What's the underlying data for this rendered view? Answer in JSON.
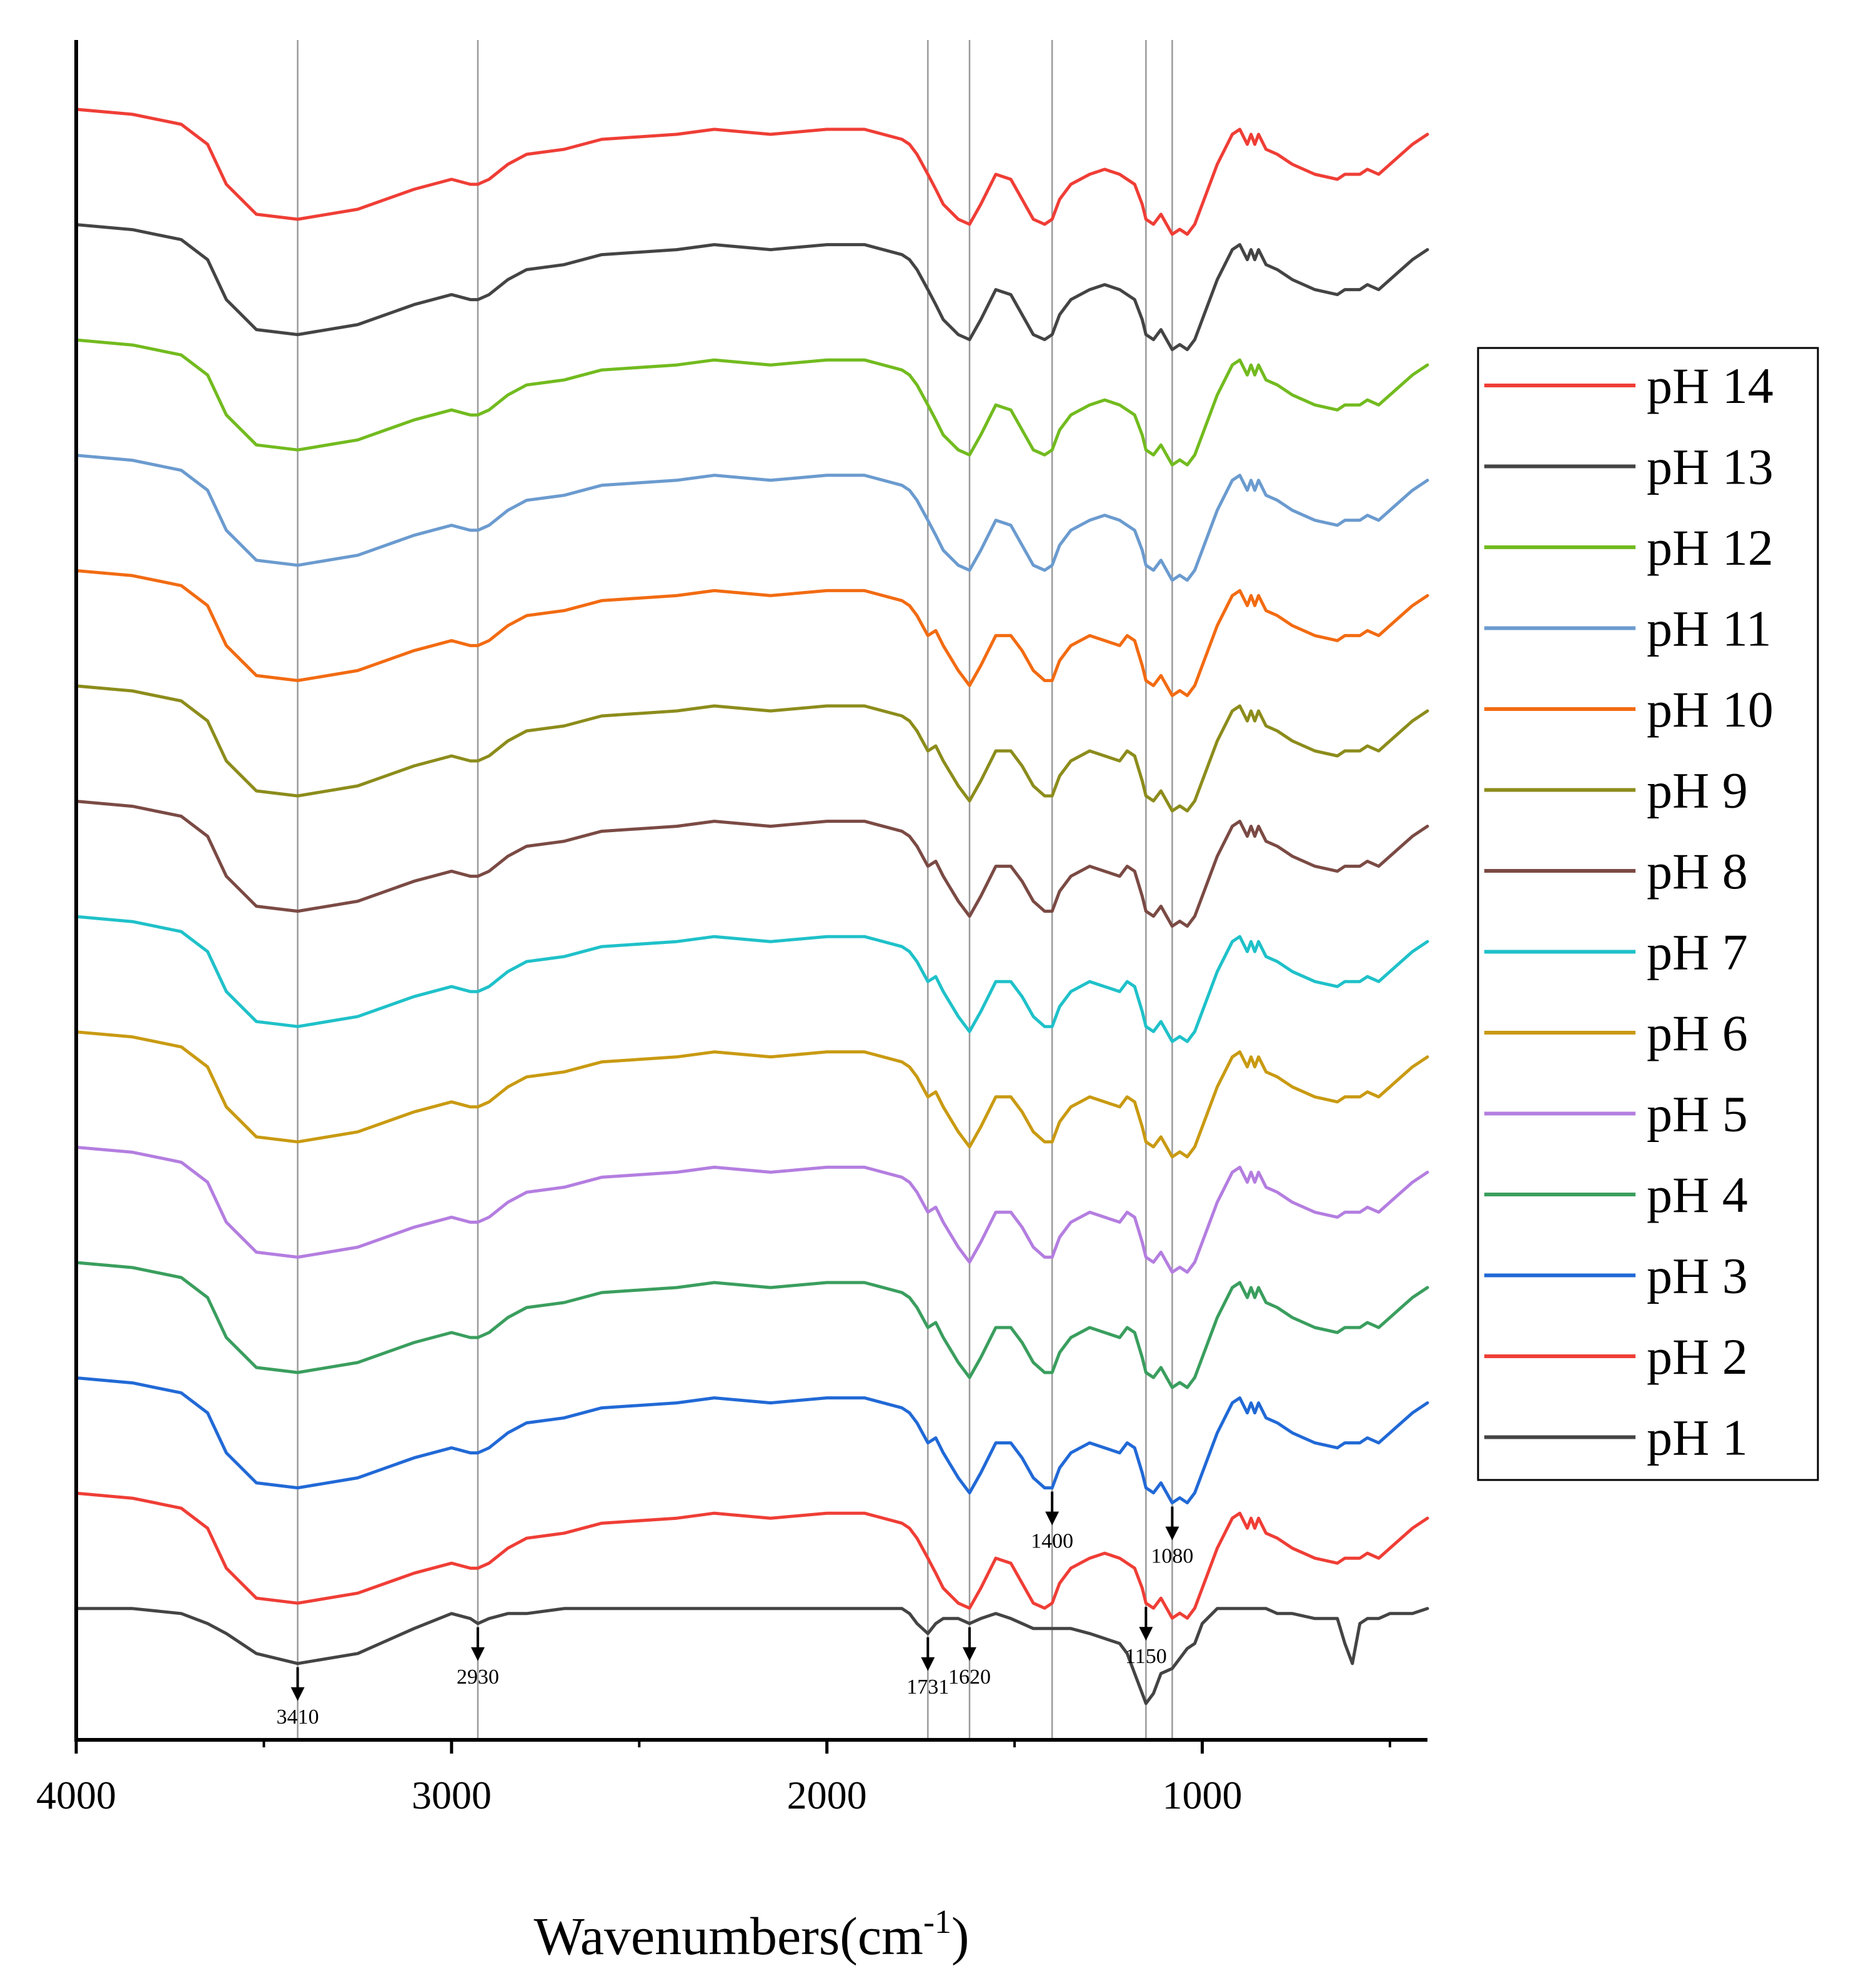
{
  "chart_data": {
    "type": "line",
    "title": "",
    "xlabel": "Wavenumbers(cm",
    "xlabel_sup": "-1",
    "xlabel_close": ")",
    "ylabel": "",
    "xlim": [
      4000,
      400
    ],
    "x_reversed": true,
    "xticks": [
      4000,
      3000,
      2000,
      1000
    ],
    "xtick_labels": [
      "4000",
      "3000",
      "2000",
      "1000"
    ],
    "minor_xticks": [
      3500,
      2500,
      1500,
      500
    ],
    "legend_position": "right",
    "reference_lines": [
      3410,
      2930,
      1731,
      1620,
      1400,
      1150,
      1080
    ],
    "peak_annotations": [
      {
        "label": "3410",
        "wavenumber": 3410,
        "series": "pH 1"
      },
      {
        "label": "2930",
        "wavenumber": 2930,
        "series": "pH 1"
      },
      {
        "label": "1731",
        "wavenumber": 1731,
        "series": "pH 1"
      },
      {
        "label": "1620",
        "wavenumber": 1620,
        "series": "pH 1"
      },
      {
        "label": "1400",
        "wavenumber": 1400,
        "series": "pH 3"
      },
      {
        "label": "1150",
        "wavenumber": 1150,
        "series": "pH 2"
      },
      {
        "label": "1080",
        "wavenumber": 1080,
        "series": "pH 3"
      }
    ],
    "x": [
      4000,
      3850,
      3720,
      3650,
      3600,
      3520,
      3410,
      3250,
      3100,
      3000,
      2950,
      2930,
      2900,
      2850,
      2800,
      2700,
      2600,
      2400,
      2300,
      2150,
      2000,
      1900,
      1800,
      1780,
      1760,
      1731,
      1710,
      1690,
      1650,
      1620,
      1590,
      1550,
      1510,
      1480,
      1450,
      1420,
      1400,
      1380,
      1350,
      1300,
      1260,
      1220,
      1200,
      1180,
      1160,
      1150,
      1130,
      1110,
      1080,
      1060,
      1040,
      1020,
      1000,
      960,
      920,
      900,
      880,
      870,
      860,
      850,
      830,
      800,
      780,
      760,
      700,
      640,
      620,
      600,
      580,
      560,
      530,
      500,
      470,
      440,
      400
    ],
    "series": [
      {
        "name": "pH 14",
        "color": "#ef3e36",
        "y": [
          97,
          96,
          94,
          90,
          82,
          76,
          75,
          77,
          81,
          83,
          82,
          82,
          83,
          86,
          88,
          89,
          91,
          92,
          93,
          92,
          93,
          93,
          91,
          90,
          88,
          84,
          81,
          78,
          75,
          74,
          78,
          84,
          83,
          79,
          75,
          74,
          75,
          79,
          82,
          84,
          85,
          84,
          83,
          82,
          78,
          75,
          74,
          76,
          72,
          73,
          72,
          74,
          78,
          86,
          92,
          93,
          90,
          92,
          90,
          92,
          89,
          88,
          87,
          86,
          84,
          83,
          84,
          84,
          84,
          85,
          84,
          86,
          88,
          90,
          92
        ]
      },
      {
        "name": "pH 13",
        "color": "#444444",
        "y": [
          97,
          96,
          94,
          90,
          82,
          76,
          75,
          77,
          81,
          83,
          82,
          82,
          83,
          86,
          88,
          89,
          91,
          92,
          93,
          92,
          93,
          93,
          91,
          90,
          88,
          84,
          81,
          78,
          75,
          74,
          78,
          84,
          83,
          79,
          75,
          74,
          75,
          79,
          82,
          84,
          85,
          84,
          83,
          82,
          78,
          75,
          74,
          76,
          72,
          73,
          72,
          74,
          78,
          86,
          92,
          93,
          90,
          92,
          90,
          92,
          89,
          88,
          87,
          86,
          84,
          83,
          84,
          84,
          84,
          85,
          84,
          86,
          88,
          90,
          92
        ]
      },
      {
        "name": "pH 12",
        "color": "#72bb1f",
        "y": [
          97,
          96,
          94,
          90,
          82,
          76,
          75,
          77,
          81,
          83,
          82,
          82,
          83,
          86,
          88,
          89,
          91,
          92,
          93,
          92,
          93,
          93,
          91,
          90,
          88,
          84,
          81,
          78,
          75,
          74,
          78,
          84,
          83,
          79,
          75,
          74,
          75,
          79,
          82,
          84,
          85,
          84,
          83,
          82,
          78,
          75,
          74,
          76,
          72,
          73,
          72,
          74,
          78,
          86,
          92,
          93,
          90,
          92,
          90,
          92,
          89,
          88,
          87,
          86,
          84,
          83,
          84,
          84,
          84,
          85,
          84,
          86,
          88,
          90,
          92
        ]
      },
      {
        "name": "pH 11",
        "color": "#6b9bcf",
        "y": [
          97,
          96,
          94,
          90,
          82,
          76,
          75,
          77,
          81,
          83,
          82,
          82,
          83,
          86,
          88,
          89,
          91,
          92,
          93,
          92,
          93,
          93,
          91,
          90,
          88,
          84,
          81,
          78,
          75,
          74,
          78,
          84,
          83,
          79,
          75,
          74,
          75,
          79,
          82,
          84,
          85,
          84,
          83,
          82,
          78,
          75,
          74,
          76,
          72,
          73,
          72,
          74,
          78,
          86,
          92,
          93,
          90,
          92,
          90,
          92,
          89,
          88,
          87,
          86,
          84,
          83,
          84,
          84,
          84,
          85,
          84,
          86,
          88,
          90,
          92
        ]
      },
      {
        "name": "pH 10",
        "color": "#f26b12",
        "y": [
          97,
          96,
          94,
          90,
          82,
          76,
          75,
          77,
          81,
          83,
          82,
          82,
          83,
          86,
          88,
          89,
          91,
          92,
          93,
          92,
          93,
          93,
          91,
          90,
          88,
          84,
          85,
          82,
          77,
          74,
          78,
          84,
          84,
          81,
          77,
          75,
          75,
          79,
          82,
          84,
          83,
          82,
          84,
          83,
          78,
          75,
          74,
          76,
          72,
          73,
          72,
          74,
          78,
          86,
          92,
          93,
          90,
          92,
          90,
          92,
          89,
          88,
          87,
          86,
          84,
          83,
          84,
          84,
          84,
          85,
          84,
          86,
          88,
          90,
          92
        ]
      },
      {
        "name": "pH 9",
        "color": "#8c8c1c",
        "y": [
          97,
          96,
          94,
          90,
          82,
          76,
          75,
          77,
          81,
          83,
          82,
          82,
          83,
          86,
          88,
          89,
          91,
          92,
          93,
          92,
          93,
          93,
          91,
          90,
          88,
          84,
          85,
          82,
          77,
          74,
          78,
          84,
          84,
          81,
          77,
          75,
          75,
          79,
          82,
          84,
          83,
          82,
          84,
          83,
          78,
          75,
          74,
          76,
          72,
          73,
          72,
          74,
          78,
          86,
          92,
          93,
          90,
          92,
          90,
          92,
          89,
          88,
          87,
          86,
          84,
          83,
          84,
          84,
          84,
          85,
          84,
          86,
          88,
          90,
          92
        ]
      },
      {
        "name": "pH 8",
        "color": "#7b4a44",
        "y": [
          97,
          96,
          94,
          90,
          82,
          76,
          75,
          77,
          81,
          83,
          82,
          82,
          83,
          86,
          88,
          89,
          91,
          92,
          93,
          92,
          93,
          93,
          91,
          90,
          88,
          84,
          85,
          82,
          77,
          74,
          78,
          84,
          84,
          81,
          77,
          75,
          75,
          79,
          82,
          84,
          83,
          82,
          84,
          83,
          78,
          75,
          74,
          76,
          72,
          73,
          72,
          74,
          78,
          86,
          92,
          93,
          90,
          92,
          90,
          92,
          89,
          88,
          87,
          86,
          84,
          83,
          84,
          84,
          84,
          85,
          84,
          86,
          88,
          90,
          92
        ]
      },
      {
        "name": "pH 7",
        "color": "#1fc1c9",
        "y": [
          97,
          96,
          94,
          90,
          82,
          76,
          75,
          77,
          81,
          83,
          82,
          82,
          83,
          86,
          88,
          89,
          91,
          92,
          93,
          92,
          93,
          93,
          91,
          90,
          88,
          84,
          85,
          82,
          77,
          74,
          78,
          84,
          84,
          81,
          77,
          75,
          75,
          79,
          82,
          84,
          83,
          82,
          84,
          83,
          78,
          75,
          74,
          76,
          72,
          73,
          72,
          74,
          78,
          86,
          92,
          93,
          90,
          92,
          90,
          92,
          89,
          88,
          87,
          86,
          84,
          83,
          84,
          84,
          84,
          85,
          84,
          86,
          88,
          90,
          92
        ]
      },
      {
        "name": "pH 6",
        "color": "#c99a12",
        "y": [
          97,
          96,
          94,
          90,
          82,
          76,
          75,
          77,
          81,
          83,
          82,
          82,
          83,
          86,
          88,
          89,
          91,
          92,
          93,
          92,
          93,
          93,
          91,
          90,
          88,
          84,
          85,
          82,
          77,
          74,
          78,
          84,
          84,
          81,
          77,
          75,
          75,
          79,
          82,
          84,
          83,
          82,
          84,
          83,
          78,
          75,
          74,
          76,
          72,
          73,
          72,
          74,
          78,
          86,
          92,
          93,
          90,
          92,
          90,
          92,
          89,
          88,
          87,
          86,
          84,
          83,
          84,
          84,
          84,
          85,
          84,
          86,
          88,
          90,
          92
        ]
      },
      {
        "name": "pH 5",
        "color": "#b47ee0",
        "y": [
          97,
          96,
          94,
          90,
          82,
          76,
          75,
          77,
          81,
          83,
          82,
          82,
          83,
          86,
          88,
          89,
          91,
          92,
          93,
          92,
          93,
          93,
          91,
          90,
          88,
          84,
          85,
          82,
          77,
          74,
          78,
          84,
          84,
          81,
          77,
          75,
          75,
          79,
          82,
          84,
          83,
          82,
          84,
          83,
          78,
          75,
          74,
          76,
          72,
          73,
          72,
          74,
          78,
          86,
          92,
          93,
          90,
          92,
          90,
          92,
          89,
          88,
          87,
          86,
          84,
          83,
          84,
          84,
          84,
          85,
          84,
          86,
          88,
          90,
          92
        ]
      },
      {
        "name": "pH 4",
        "color": "#3a9e5e",
        "y": [
          97,
          96,
          94,
          90,
          82,
          76,
          75,
          77,
          81,
          83,
          82,
          82,
          83,
          86,
          88,
          89,
          91,
          92,
          93,
          92,
          93,
          93,
          91,
          90,
          88,
          84,
          85,
          82,
          77,
          74,
          78,
          84,
          84,
          81,
          77,
          75,
          75,
          79,
          82,
          84,
          83,
          82,
          84,
          83,
          78,
          75,
          74,
          76,
          72,
          73,
          72,
          74,
          78,
          86,
          92,
          93,
          90,
          92,
          90,
          92,
          89,
          88,
          87,
          86,
          84,
          83,
          84,
          84,
          84,
          85,
          84,
          86,
          88,
          90,
          92
        ]
      },
      {
        "name": "pH 3",
        "color": "#2169d6",
        "y": [
          97,
          96,
          94,
          90,
          82,
          76,
          75,
          77,
          81,
          83,
          82,
          82,
          83,
          86,
          88,
          89,
          91,
          92,
          93,
          92,
          93,
          93,
          91,
          90,
          88,
          84,
          85,
          82,
          77,
          74,
          78,
          84,
          84,
          81,
          77,
          75,
          75,
          79,
          82,
          84,
          83,
          82,
          84,
          83,
          78,
          75,
          74,
          76,
          72,
          73,
          72,
          74,
          78,
          86,
          92,
          93,
          90,
          92,
          90,
          92,
          89,
          88,
          87,
          86,
          84,
          83,
          84,
          84,
          84,
          85,
          84,
          86,
          88,
          90,
          92
        ]
      },
      {
        "name": "pH 2",
        "color": "#ef3e36",
        "y": [
          97,
          96,
          94,
          90,
          82,
          76,
          75,
          77,
          81,
          83,
          82,
          82,
          83,
          86,
          88,
          89,
          91,
          92,
          93,
          92,
          93,
          93,
          91,
          90,
          88,
          84,
          81,
          78,
          75,
          74,
          78,
          84,
          83,
          79,
          75,
          74,
          75,
          79,
          82,
          84,
          85,
          84,
          83,
          82,
          78,
          75,
          74,
          76,
          72,
          73,
          72,
          74,
          78,
          86,
          92,
          93,
          90,
          92,
          90,
          92,
          89,
          88,
          87,
          86,
          84,
          83,
          84,
          84,
          84,
          85,
          84,
          86,
          88,
          90,
          92
        ]
      },
      {
        "name": "pH 1",
        "color": "#444444",
        "y": [
          97,
          97,
          96,
          94,
          92,
          88,
          86,
          88,
          93,
          96,
          95,
          94,
          95,
          96,
          96,
          97,
          97,
          97,
          97,
          97,
          97,
          97,
          97,
          96,
          94,
          92,
          94,
          95,
          95,
          94,
          95,
          96,
          95,
          94,
          93,
          93,
          93,
          93,
          93,
          92,
          91,
          90,
          88,
          84,
          80,
          78,
          80,
          84,
          85,
          87,
          89,
          90,
          94,
          97,
          97,
          97,
          97,
          97,
          97,
          97,
          97,
          96,
          96,
          96,
          95,
          95,
          90,
          86,
          94,
          95,
          95,
          96,
          96,
          96,
          97
        ]
      }
    ]
  }
}
